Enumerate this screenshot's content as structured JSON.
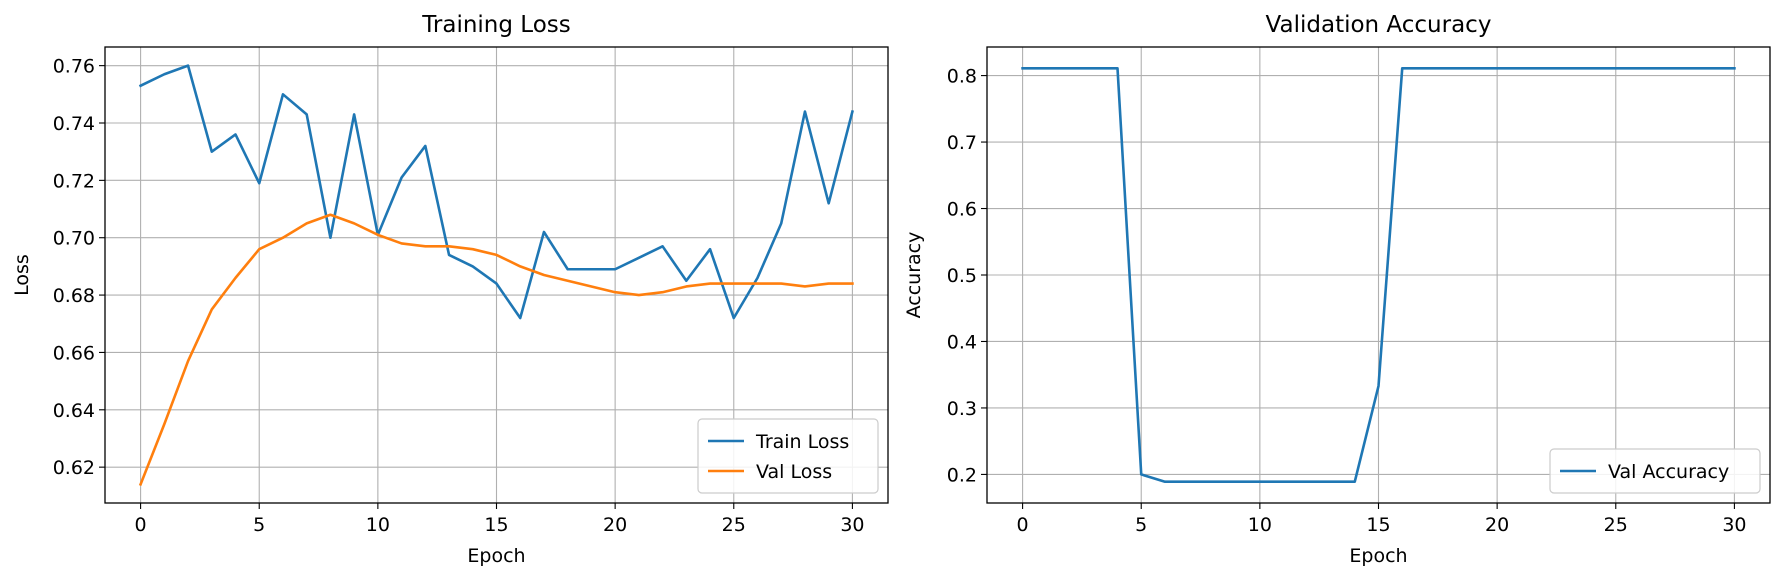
{
  "colors": {
    "series_blue": "#1f77b4",
    "series_orange": "#ff7f0e",
    "grid": "#b0b0b0",
    "axes": "#000000",
    "legend_border": "#cccccc"
  },
  "chart_data": [
    {
      "type": "line",
      "title": "Training Loss",
      "xlabel": "Epoch",
      "ylabel": "Loss",
      "xlim": [
        -1.5,
        31.5
      ],
      "ylim": [
        0.6075,
        0.7665
      ],
      "xticks": [
        0,
        5,
        10,
        15,
        20,
        25,
        30
      ],
      "yticks": [
        0.62,
        0.64,
        0.66,
        0.68,
        0.7,
        0.72,
        0.74,
        0.76
      ],
      "ytick_labels": [
        "0.62",
        "0.64",
        "0.66",
        "0.68",
        "0.70",
        "0.72",
        "0.74",
        "0.76"
      ],
      "grid": true,
      "legend_position": "lower-right",
      "x": [
        0,
        1,
        2,
        3,
        4,
        5,
        6,
        7,
        8,
        9,
        10,
        11,
        12,
        13,
        14,
        15,
        16,
        17,
        18,
        19,
        20,
        21,
        22,
        23,
        24,
        25,
        26,
        27,
        28,
        29,
        30
      ],
      "series": [
        {
          "name": "Train Loss",
          "color": "#1f77b4",
          "values": [
            0.753,
            0.757,
            0.76,
            0.73,
            0.736,
            0.719,
            0.75,
            0.743,
            0.7,
            0.743,
            0.701,
            0.721,
            0.732,
            0.694,
            0.69,
            0.684,
            0.672,
            0.702,
            0.689,
            0.689,
            0.689,
            0.693,
            0.697,
            0.685,
            0.696,
            0.672,
            0.686,
            0.705,
            0.744,
            0.712,
            0.744
          ]
        },
        {
          "name": "Val Loss",
          "color": "#ff7f0e",
          "values": [
            0.614,
            0.635,
            0.657,
            0.675,
            0.686,
            0.696,
            0.7,
            0.705,
            0.708,
            0.705,
            0.701,
            0.698,
            0.697,
            0.697,
            0.696,
            0.694,
            0.69,
            0.687,
            0.685,
            0.683,
            0.681,
            0.68,
            0.681,
            0.683,
            0.684,
            0.684,
            0.684,
            0.684,
            0.683,
            0.684,
            0.684
          ]
        }
      ]
    },
    {
      "type": "line",
      "title": "Validation Accuracy",
      "xlabel": "Epoch",
      "ylabel": "Accuracy",
      "xlim": [
        -1.5,
        31.5
      ],
      "ylim": [
        0.157,
        0.843
      ],
      "xticks": [
        0,
        5,
        10,
        15,
        20,
        25,
        30
      ],
      "yticks": [
        0.2,
        0.3,
        0.4,
        0.5,
        0.6,
        0.7,
        0.8
      ],
      "ytick_labels": [
        "0.2",
        "0.3",
        "0.4",
        "0.5",
        "0.6",
        "0.7",
        "0.8"
      ],
      "grid": true,
      "legend_position": "lower-right",
      "x": [
        0,
        1,
        2,
        3,
        4,
        5,
        6,
        7,
        8,
        9,
        10,
        11,
        12,
        13,
        14,
        15,
        16,
        17,
        18,
        19,
        20,
        21,
        22,
        23,
        24,
        25,
        26,
        27,
        28,
        29,
        30
      ],
      "series": [
        {
          "name": "Val Accuracy",
          "color": "#1f77b4",
          "values": [
            0.811,
            0.811,
            0.811,
            0.811,
            0.811,
            0.2,
            0.189,
            0.189,
            0.189,
            0.189,
            0.189,
            0.189,
            0.189,
            0.189,
            0.189,
            0.333,
            0.811,
            0.811,
            0.811,
            0.811,
            0.811,
            0.811,
            0.811,
            0.811,
            0.811,
            0.811,
            0.811,
            0.811,
            0.811,
            0.811,
            0.811
          ]
        }
      ]
    }
  ]
}
